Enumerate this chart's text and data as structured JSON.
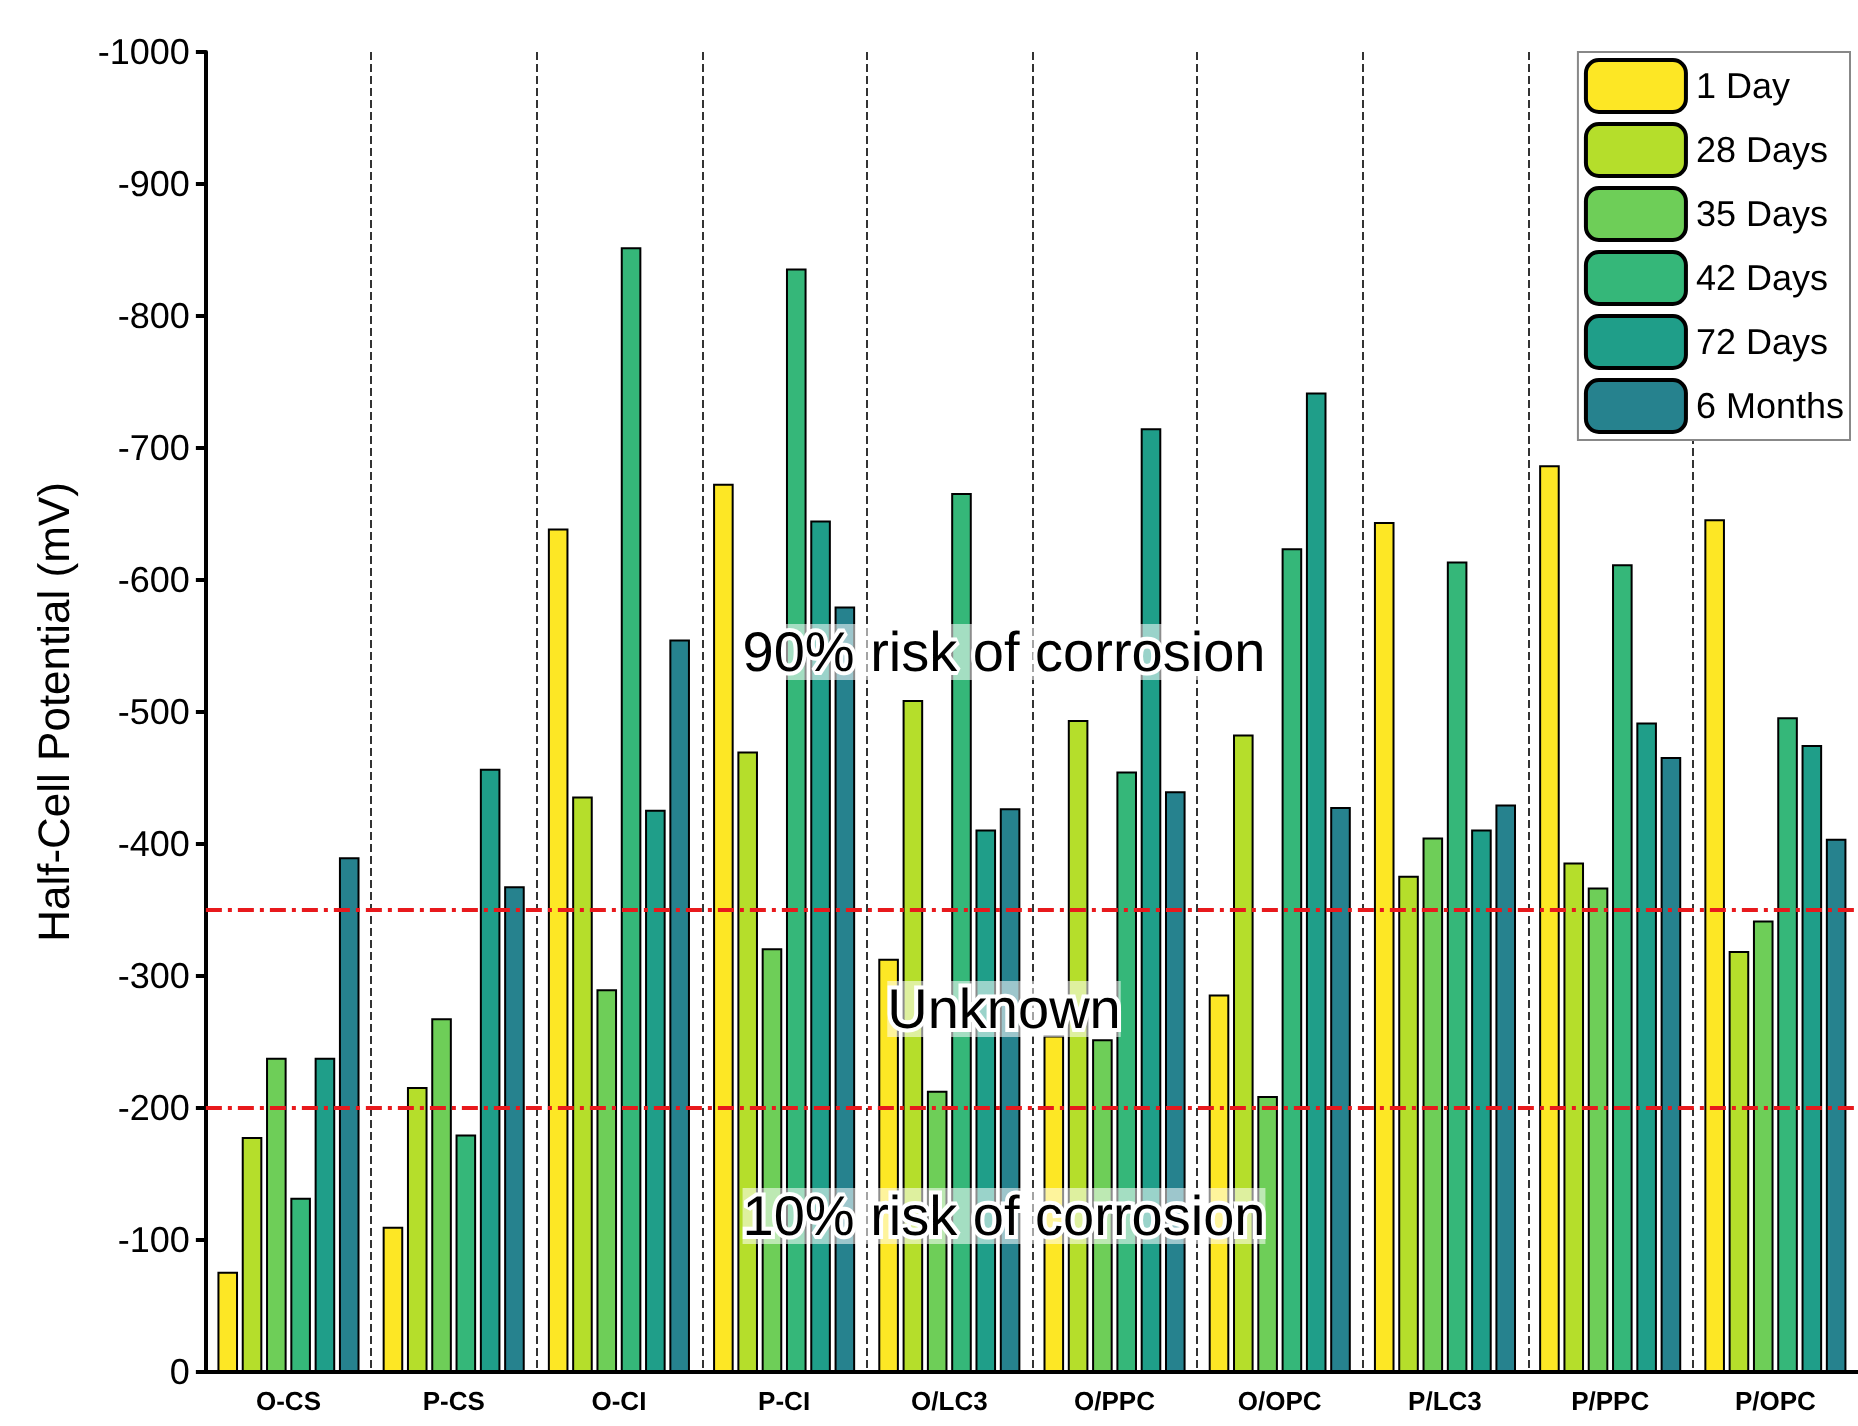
{
  "chart_data": {
    "type": "bar",
    "ylabel": "Half-Cell Potential (mV)",
    "categories": [
      "O-CS",
      "P-CS",
      "O-CI",
      "P-CI",
      "O/LC3",
      "O/PPC",
      "O/OPC",
      "P/LC3",
      "P/PPC",
      "P/OPC"
    ],
    "series": [
      {
        "name": "1 Day",
        "color": "#fde725",
        "values": [
          -76,
          -110,
          -639,
          -673,
          -313,
          -255,
          -286,
          -644,
          -687,
          -646
        ]
      },
      {
        "name": "28 Days",
        "color": "#b5de2b",
        "values": [
          -178,
          -216,
          -436,
          -470,
          -509,
          -494,
          -483,
          -376,
          -386,
          -319
        ]
      },
      {
        "name": "35 Days",
        "color": "#6ece58",
        "values": [
          -238,
          -268,
          -290,
          -321,
          -213,
          -252,
          -209,
          -405,
          -367,
          -342
        ]
      },
      {
        "name": "42 Days",
        "color": "#35b779",
        "values": [
          -132,
          -180,
          -852,
          -836,
          -666,
          -455,
          -624,
          -614,
          -612,
          -496
        ]
      },
      {
        "name": "72 Days",
        "color": "#1f9e89",
        "values": [
          -238,
          -457,
          -426,
          -645,
          -411,
          -715,
          -742,
          -411,
          -492,
          -475
        ]
      },
      {
        "name": "6 Months",
        "color": "#26828e",
        "values": [
          -390,
          -368,
          -555,
          -580,
          -427,
          -440,
          -428,
          -430,
          -466,
          -404
        ]
      }
    ],
    "ylim": [
      0,
      -1000
    ],
    "yticks": [
      0,
      -100,
      -200,
      -300,
      -400,
      -500,
      -600,
      -700,
      -800,
      -900,
      -1000
    ],
    "grid": "x",
    "legend": "top right",
    "ref_lines": [
      {
        "axis": "y",
        "value": -350,
        "color": "#e8191c",
        "line_style": "dashdot"
      },
      {
        "axis": "y",
        "value": -200,
        "color": "#e8191c",
        "line_style": "dashdot"
      }
    ],
    "annotations": [
      "90% risk of corrosion",
      "Unknown",
      "10% risk of corrosion"
    ]
  }
}
